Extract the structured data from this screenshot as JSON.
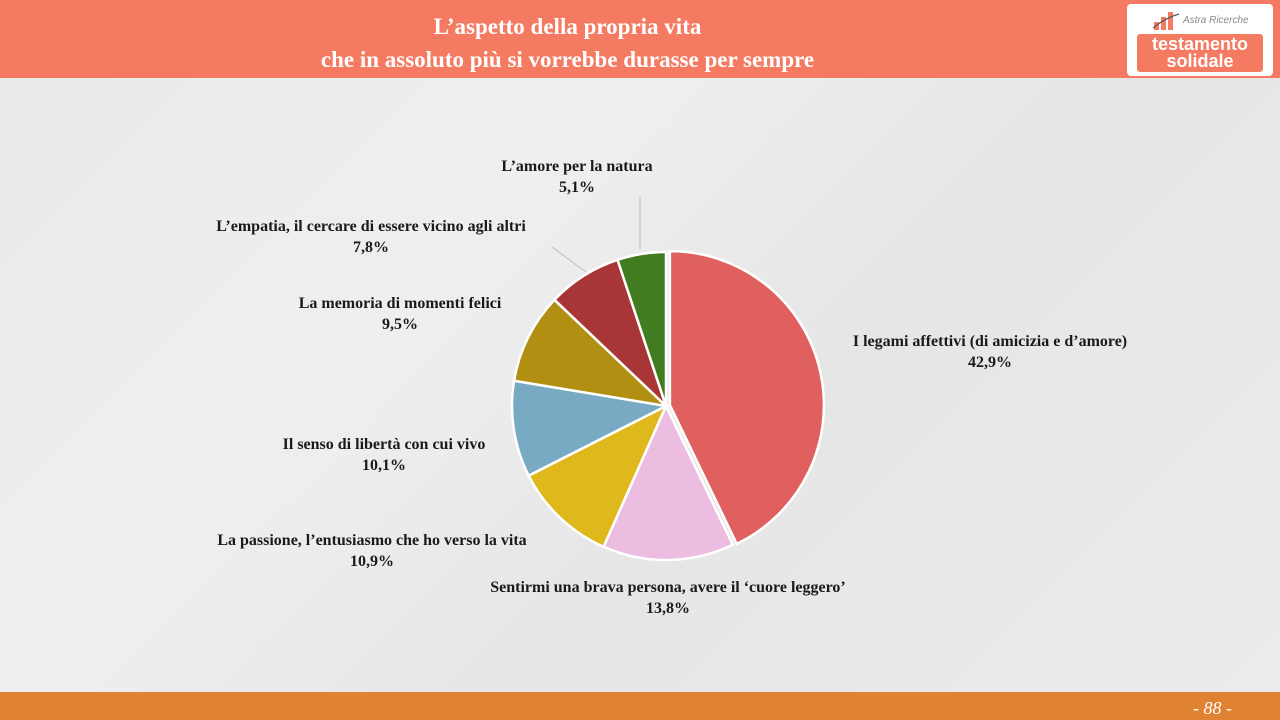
{
  "title": {
    "line1": "L’aspetto della propria vita",
    "line2": "che in assoluto più si vorrebbe durasse per sempre"
  },
  "logo": {
    "brand": "Astra Ricerche",
    "line1": "testamento",
    "line2": "solidale"
  },
  "footer": {
    "page": "- 88 -"
  },
  "chart_data": {
    "type": "pie",
    "title": "L’aspetto della propria vita che in assoluto più si vorrebbe durasse per sempre",
    "start_angle_deg": 0,
    "direction": "clockwise",
    "exploded": true,
    "slices": [
      {
        "label": "I legami affettivi (di amicizia e d’amore)",
        "value": 42.9,
        "display": "42,9%",
        "color": "#e06060"
      },
      {
        "label": "Sentirmi una brava persona, avere il ‘cuore leggero’",
        "value": 13.8,
        "display": "13,8%",
        "color": "#ecbde0"
      },
      {
        "label": "La passione, l’entusiasmo che ho verso la vita",
        "value": 10.9,
        "display": "10,9%",
        "color": "#dfb81b"
      },
      {
        "label": "Il senso di libertà con cui vivo",
        "value": 10.1,
        "display": "10,1%",
        "color": "#78aac3"
      },
      {
        "label": "La memoria di momenti felici",
        "value": 9.5,
        "display": "9,5%",
        "color": "#b08f12"
      },
      {
        "label": "L’empatia, il cercare di essere vicino agli altri",
        "value": 7.8,
        "display": "7,8%",
        "color": "#a83636"
      },
      {
        "label": "L’amore per la natura",
        "value": 5.1,
        "display": "5,1%",
        "color": "#417d20"
      }
    ]
  }
}
